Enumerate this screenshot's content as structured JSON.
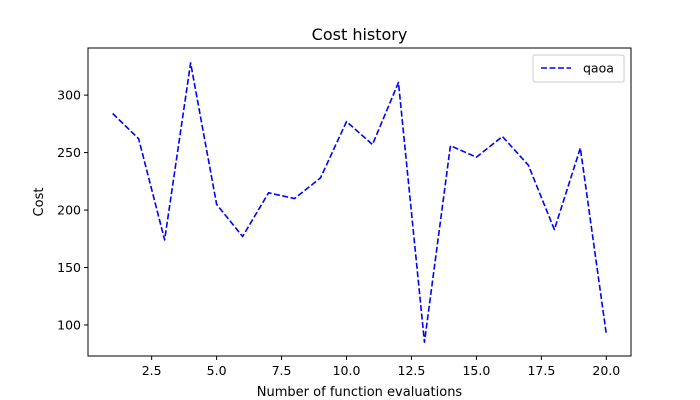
{
  "chart_data": {
    "type": "line",
    "title": "Cost history",
    "xlabel": "Number of function evaluations",
    "ylabel": "Cost",
    "xlim": [
      0.05,
      20.95
    ],
    "ylim": [
      73,
      341
    ],
    "xticks": [
      2.5,
      5.0,
      7.5,
      10.0,
      12.5,
      15.0,
      17.5,
      20.0
    ],
    "xtick_labels": [
      "2.5",
      "5.0",
      "7.5",
      "10.0",
      "12.5",
      "15.0",
      "17.5",
      "20.0"
    ],
    "yticks": [
      100,
      150,
      200,
      250,
      300
    ],
    "ytick_labels": [
      "100",
      "150",
      "200",
      "250",
      "300"
    ],
    "grid": false,
    "legend_position": "top-right",
    "series": [
      {
        "name": "qaoa",
        "color": "#0000ff",
        "line_style": "dashed",
        "x": [
          1,
          2,
          3,
          4,
          5,
          6,
          7,
          8,
          9,
          10,
          11,
          12,
          13,
          14,
          15,
          16,
          17,
          18,
          19,
          20
        ],
        "y": [
          284,
          262,
          174,
          328,
          205,
          177,
          215,
          210,
          228,
          277,
          257,
          311,
          85,
          256,
          246,
          264,
          239,
          183,
          254,
          92
        ]
      }
    ]
  }
}
